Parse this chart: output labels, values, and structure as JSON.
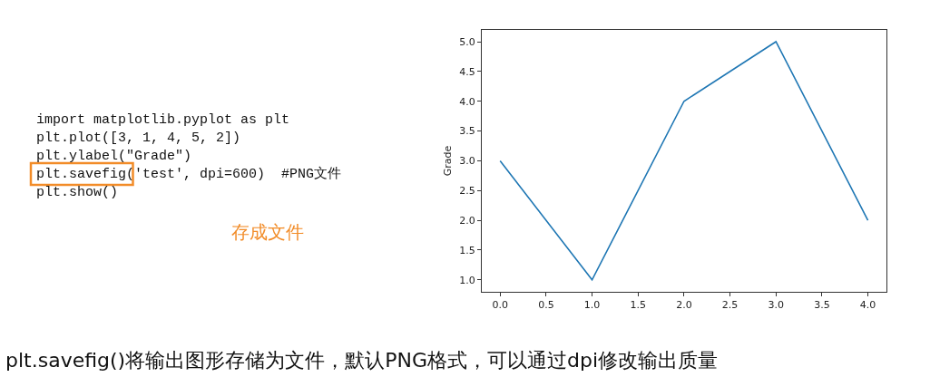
{
  "chart_data": {
    "type": "line",
    "ylabel": "Grade",
    "x": [
      0,
      1,
      2,
      3,
      4
    ],
    "series": [
      {
        "color": "#1f77b4",
        "values": [
          3,
          1,
          4,
          5,
          2
        ]
      }
    ],
    "xlim": [
      -0.2,
      4.2
    ],
    "xticks": [
      {
        "value": 0,
        "label": "0.0"
      },
      {
        "value": 0.5,
        "label": "0.5"
      },
      {
        "value": 1,
        "label": "1.0"
      },
      {
        "value": 1.5,
        "label": "1.5"
      },
      {
        "value": 2,
        "label": "2.0"
      },
      {
        "value": 2.5,
        "label": "2.5"
      },
      {
        "value": 3,
        "label": "3.0"
      },
      {
        "value": 3.5,
        "label": "3.5"
      },
      {
        "value": 4,
        "label": "4.0"
      }
    ],
    "ylim": [
      0.8,
      5.2
    ],
    "yticks": [
      {
        "value": 1,
        "label": "1.0"
      },
      {
        "value": 1.5,
        "label": "1.5"
      },
      {
        "value": 2,
        "label": "2.0"
      },
      {
        "value": 2.5,
        "label": "2.5"
      },
      {
        "value": 3,
        "label": "3.0"
      },
      {
        "value": 3.5,
        "label": "3.5"
      },
      {
        "value": 4,
        "label": "4.0"
      },
      {
        "value": 4.5,
        "label": "4.5"
      },
      {
        "value": 5,
        "label": "5.0"
      }
    ],
    "marker": "none",
    "line_style": "solid",
    "annotations": [
      "import matplotlib.pyplot as plt",
      "plt.plot([3, 1, 4, 5, 2])",
      "plt.ylabel(\"Grade\")",
      "plt.savefig('test', dpi=600)  #PNG文件",
      "plt.show()",
      "存成文件",
      "plt.savefig()将输出图形存储为文件，默认PNG格式，可以通过dpi修改输出质量"
    ]
  }
}
